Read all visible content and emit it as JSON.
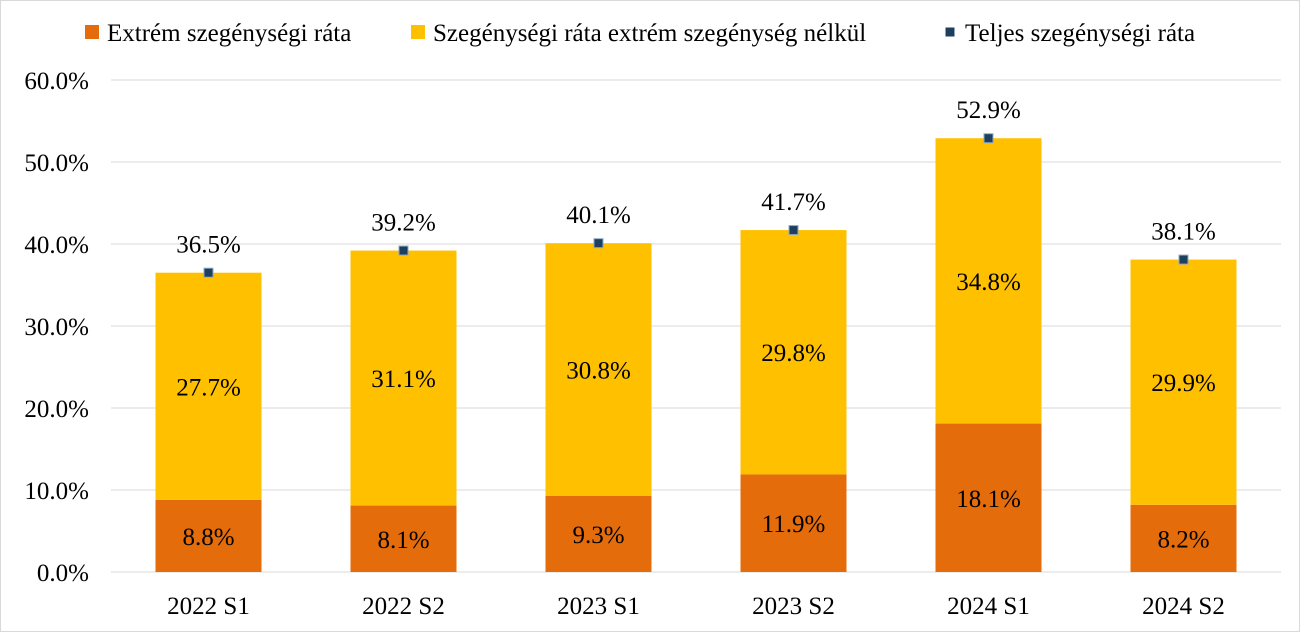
{
  "chart_data": {
    "type": "bar",
    "stacked": true,
    "title": "",
    "xlabel": "",
    "ylabel": "",
    "ylim": [
      0,
      60
    ],
    "yticks": [
      "0.0%",
      "10.0%",
      "20.0%",
      "30.0%",
      "40.0%",
      "50.0%",
      "60.0%"
    ],
    "grid": true,
    "legend_position": "top",
    "categories": [
      "2022 S1",
      "2022 S2",
      "2023 S1",
      "2023 S2",
      "2024 S1",
      "2024 S2"
    ],
    "series": [
      {
        "name": "Extrém szegénységi ráta",
        "kind": "bar",
        "color": "#E46C0A",
        "values": [
          8.8,
          8.1,
          9.3,
          11.9,
          18.1,
          8.2
        ],
        "labels": [
          "8.8%",
          "8.1%",
          "9.3%",
          "11.9%",
          "18.1%",
          "8.2%"
        ]
      },
      {
        "name": "Szegénységi ráta extrém szegénység nélkül",
        "kind": "bar",
        "color": "#FFC000",
        "values": [
          27.7,
          31.1,
          30.8,
          29.8,
          34.8,
          29.9
        ],
        "labels": [
          "27.7%",
          "31.1%",
          "30.8%",
          "29.8%",
          "34.8%",
          "29.9%"
        ]
      },
      {
        "name": "Teljes szegénységi ráta",
        "kind": "marker",
        "color": "#1F3F5F",
        "values": [
          36.5,
          39.2,
          40.1,
          41.7,
          52.9,
          38.1
        ],
        "labels": [
          "36.5%",
          "39.2%",
          "40.1%",
          "41.7%",
          "52.9%",
          "38.1%"
        ]
      }
    ]
  }
}
